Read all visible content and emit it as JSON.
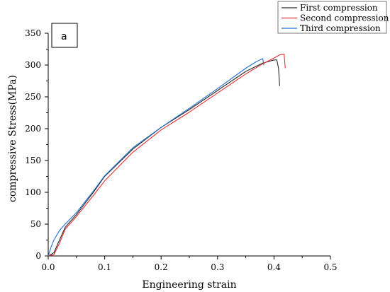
{
  "chart_data": {
    "type": "line",
    "panel_label": "a",
    "xlabel": "Engineering strain",
    "ylabel": "compressive  Stress(MPa)",
    "xlim": [
      0.0,
      0.5
    ],
    "ylim": [
      0,
      350
    ],
    "x_ticks": [
      "0.0",
      "0.1",
      "0.2",
      "0.3",
      "0.4",
      "0.5"
    ],
    "y_ticks": [
      "0",
      "50",
      "100",
      "150",
      "200",
      "250",
      "300",
      "350"
    ],
    "grid": false,
    "legend_position": "top-right",
    "series": [
      {
        "name": "First compression",
        "color": "#2b2b2b",
        "x": [
          0.0,
          0.01,
          0.02,
          0.03,
          0.05,
          0.08,
          0.1,
          0.15,
          0.2,
          0.25,
          0.3,
          0.35,
          0.38,
          0.4,
          0.405,
          0.408,
          0.41
        ],
        "y": [
          0,
          5,
          25,
          45,
          65,
          100,
          125,
          168,
          202,
          230,
          260,
          290,
          303,
          308,
          308,
          295,
          267
        ]
      },
      {
        "name": "Second compression",
        "color": "#e03030",
        "x": [
          0.0,
          0.01,
          0.02,
          0.03,
          0.05,
          0.08,
          0.1,
          0.15,
          0.2,
          0.25,
          0.3,
          0.35,
          0.38,
          0.4,
          0.41,
          0.418,
          0.42
        ],
        "y": [
          0,
          2,
          20,
          42,
          62,
          95,
          118,
          163,
          198,
          226,
          256,
          286,
          302,
          311,
          316,
          317,
          295
        ]
      },
      {
        "name": "Third compression",
        "color": "#1f6fd0",
        "x": [
          0.0,
          0.005,
          0.01,
          0.02,
          0.03,
          0.05,
          0.08,
          0.1,
          0.15,
          0.2,
          0.25,
          0.3,
          0.35,
          0.37,
          0.38,
          0.382
        ],
        "y": [
          0,
          14,
          25,
          40,
          50,
          68,
          102,
          126,
          170,
          202,
          232,
          263,
          295,
          306,
          310,
          300
        ]
      }
    ]
  }
}
